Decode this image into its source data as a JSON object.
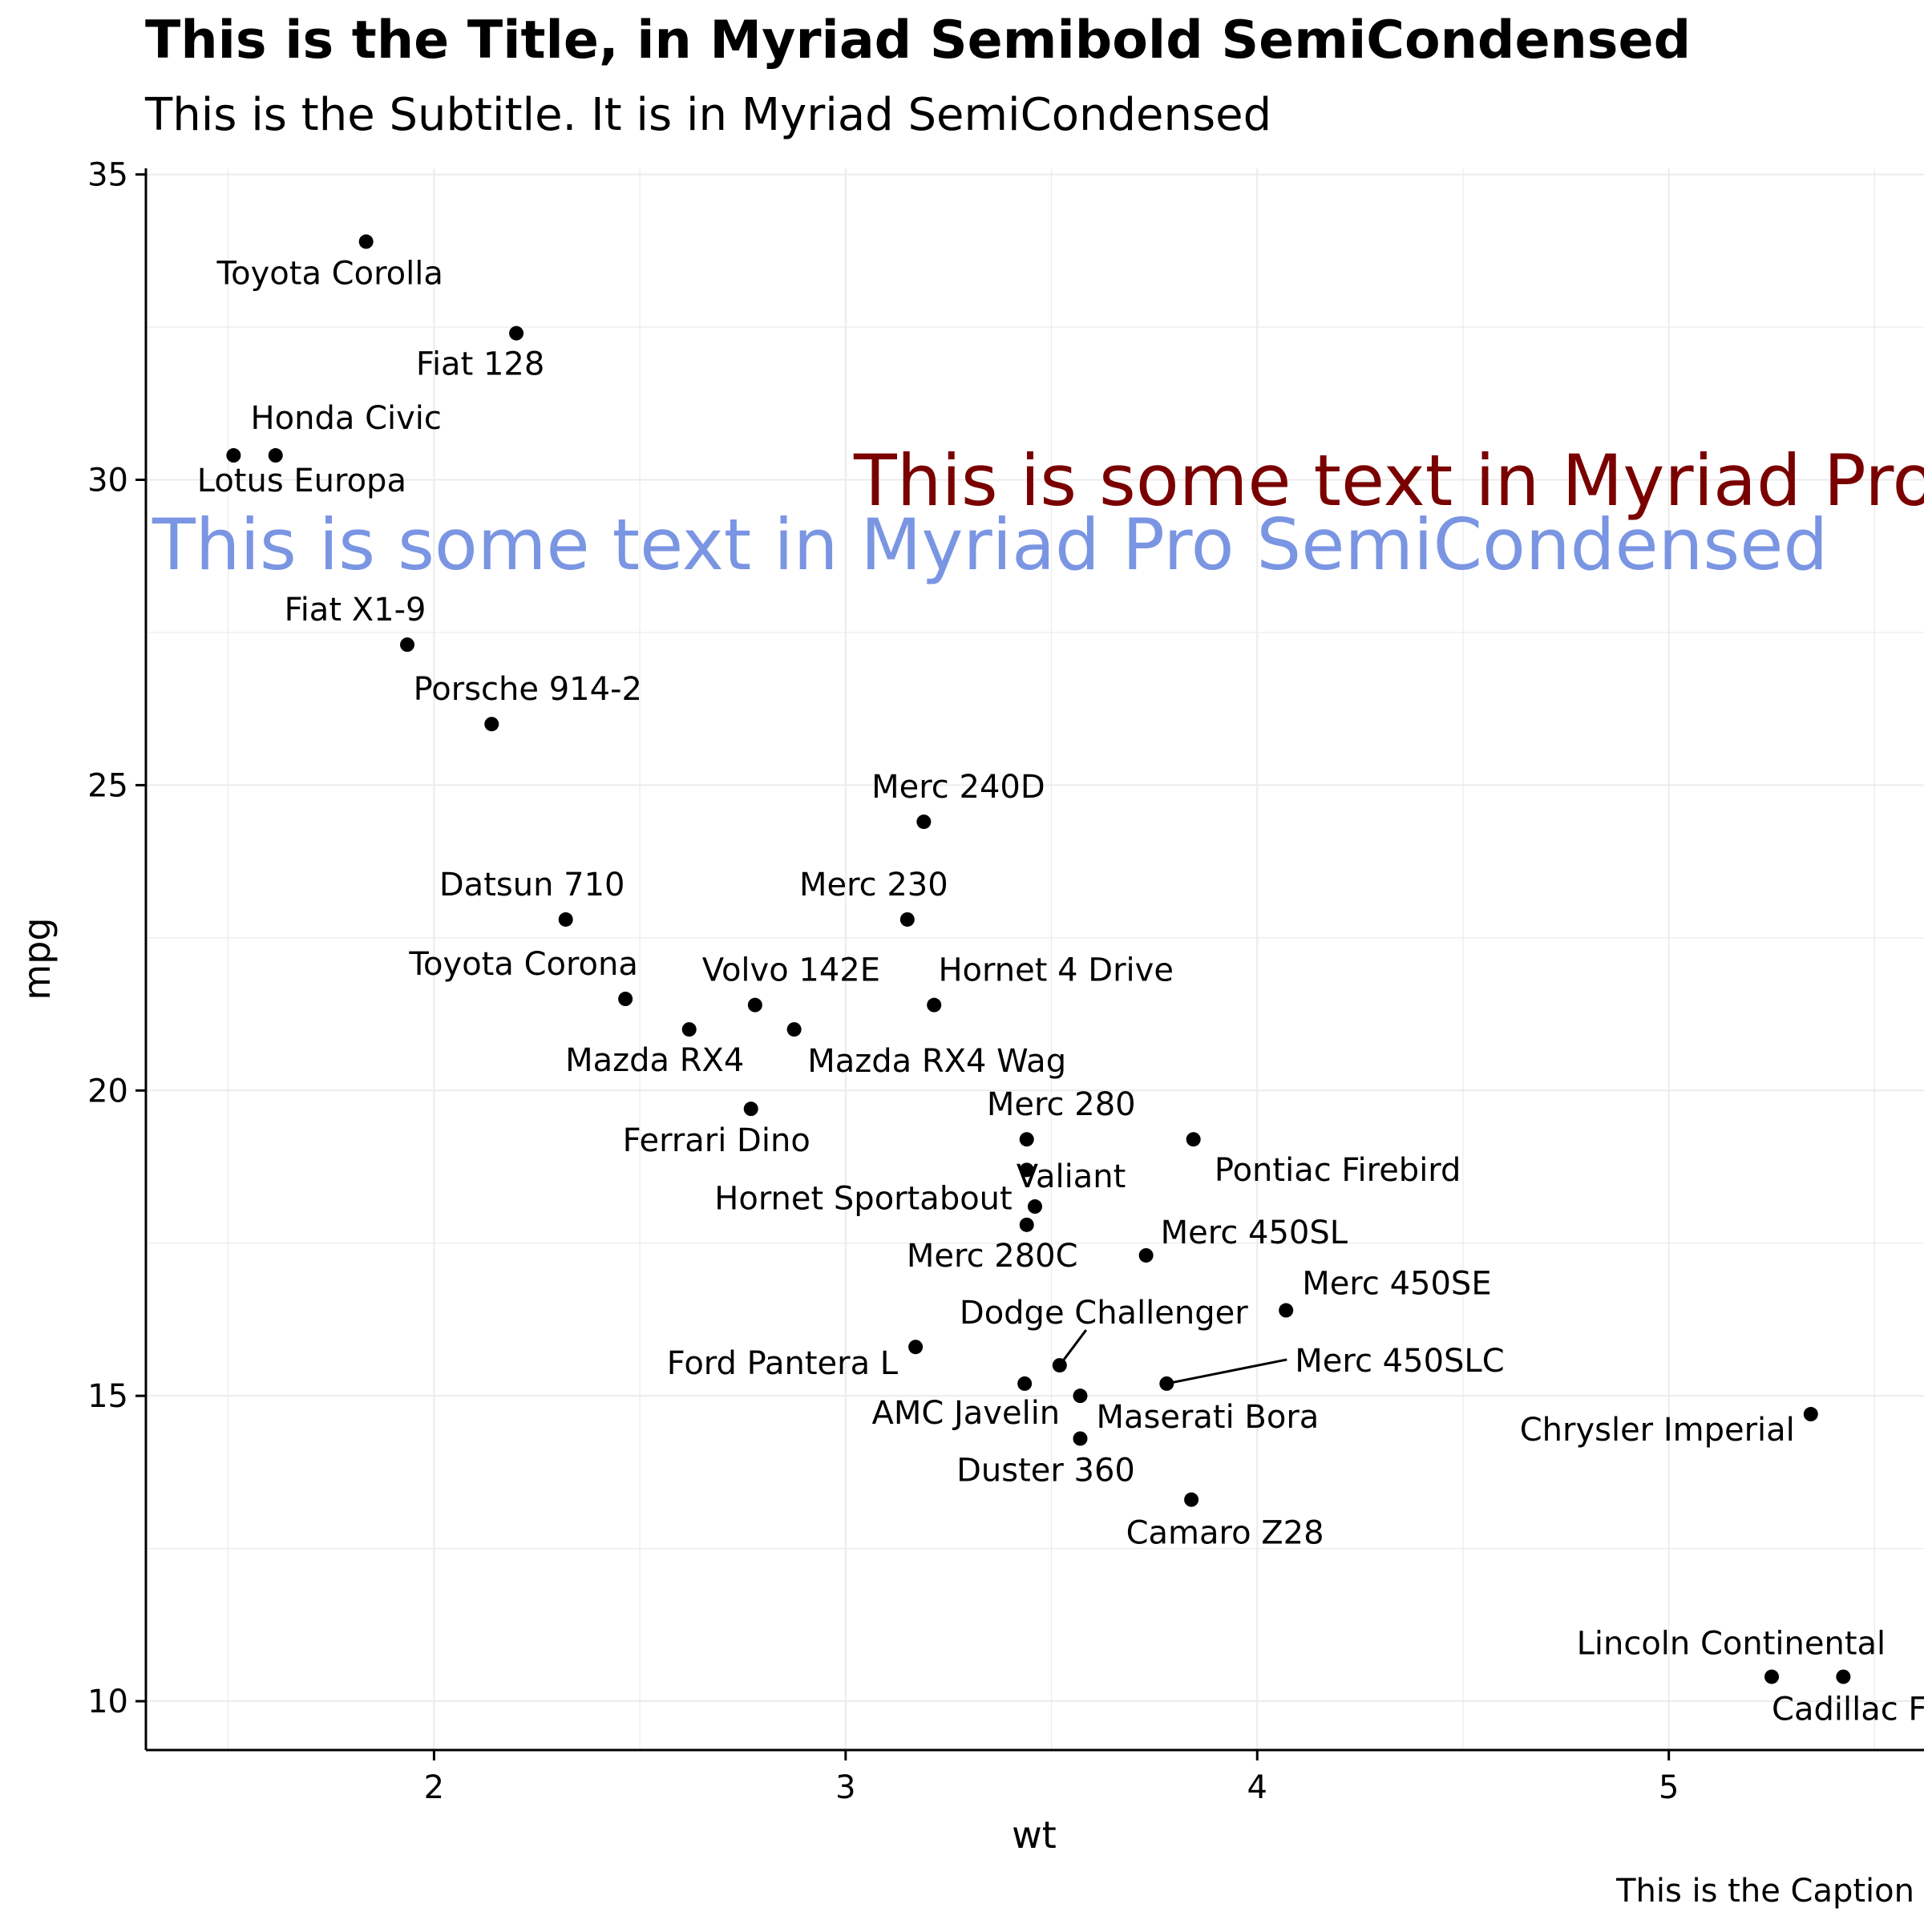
{
  "chart_data": {
    "type": "scatter",
    "title": "This is the Title, in Myriad Semibold SemiCondensed",
    "subtitle": "This is the Subtitle. It is in Myriad SemiCondensed",
    "caption": "This is the Caption",
    "xlabel": "wt",
    "ylabel": "mpg",
    "xlim": [
      1.3,
      5.62
    ],
    "ylim": [
      9.2,
      35.1
    ],
    "xticks": [
      2,
      3,
      4,
      5
    ],
    "yticks": [
      10,
      15,
      20,
      25,
      30,
      35
    ],
    "grid": true,
    "annotations": [
      {
        "text": "This is some text in Myriad Pro Condensed",
        "x": 3.5,
        "y": 30.0,
        "color": "#7a0000"
      },
      {
        "text": "This is some text in Myriad Pro SemiCondensed",
        "x": 3.5,
        "y": 28.9,
        "color": "#7a95e2"
      }
    ],
    "points": [
      {
        "label": "Toyota Corolla",
        "x": 1.835,
        "y": 33.9
      },
      {
        "label": "Fiat 128",
        "x": 2.2,
        "y": 32.4
      },
      {
        "label": "Honda Civic",
        "x": 1.615,
        "y": 30.4
      },
      {
        "label": "Lotus Europa",
        "x": 1.513,
        "y": 30.4
      },
      {
        "label": "Fiat X1-9",
        "x": 1.935,
        "y": 27.3
      },
      {
        "label": "Porsche 914-2",
        "x": 2.14,
        "y": 26.0
      },
      {
        "label": "Merc 240D",
        "x": 3.19,
        "y": 24.4
      },
      {
        "label": "Datsun 710",
        "x": 2.32,
        "y": 22.8
      },
      {
        "label": "Merc 230",
        "x": 3.15,
        "y": 22.8
      },
      {
        "label": "Toyota Corona",
        "x": 2.465,
        "y": 21.5
      },
      {
        "label": "Volvo 142E",
        "x": 2.78,
        "y": 21.4
      },
      {
        "label": "Hornet 4 Drive",
        "x": 3.215,
        "y": 21.4
      },
      {
        "label": "Mazda RX4",
        "x": 2.62,
        "y": 21.0
      },
      {
        "label": "Mazda RX4 Wag",
        "x": 2.875,
        "y": 21.0
      },
      {
        "label": "Ferrari Dino",
        "x": 2.77,
        "y": 19.7
      },
      {
        "label": "Merc 280",
        "x": 3.44,
        "y": 19.2
      },
      {
        "label": "Pontiac Firebird",
        "x": 3.845,
        "y": 19.2
      },
      {
        "label": "Valiant",
        "x": 3.46,
        "y": 18.1
      },
      {
        "label": "Hornet Sportabout",
        "x": 3.44,
        "y": 18.7
      },
      {
        "label": "Merc 280C",
        "x": 3.44,
        "y": 17.8
      },
      {
        "label": "Merc 450SL",
        "x": 3.73,
        "y": 17.3
      },
      {
        "label": "Merc 450SE",
        "x": 4.07,
        "y": 16.4
      },
      {
        "label": "Dodge Challenger",
        "x": 3.52,
        "y": 15.5
      },
      {
        "label": "Ford Pantera L",
        "x": 3.17,
        "y": 15.8
      },
      {
        "label": "Merc 450SLC",
        "x": 3.78,
        "y": 15.2
      },
      {
        "label": "AMC Javelin",
        "x": 3.435,
        "y": 15.2
      },
      {
        "label": "Maserati Bora",
        "x": 3.57,
        "y": 15.0
      },
      {
        "label": "Chrysler Imperial",
        "x": 5.345,
        "y": 14.7
      },
      {
        "label": "Duster 360",
        "x": 3.57,
        "y": 14.3
      },
      {
        "label": "Camaro Z28",
        "x": 3.84,
        "y": 13.3
      },
      {
        "label": "Lincoln Continental",
        "x": 5.424,
        "y": 10.4
      },
      {
        "label": "Cadillac Fleetwood",
        "x": 5.25,
        "y": 10.4
      }
    ]
  }
}
